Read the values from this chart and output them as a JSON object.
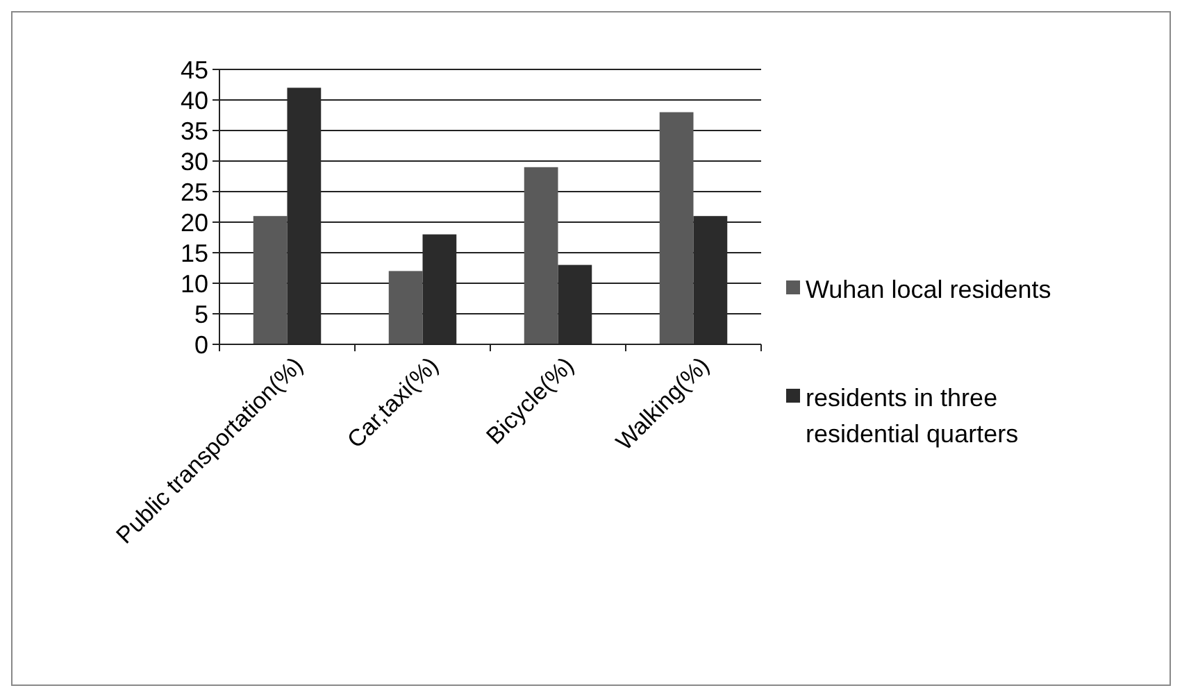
{
  "chart_data": {
    "type": "bar",
    "categories": [
      "Public transportation(%)",
      "Car,taxi(%)",
      "Bicycle(%)",
      "Walking(%)"
    ],
    "series": [
      {
        "name": "Wuhan local residents",
        "color": "#5a5a5a",
        "values": [
          21,
          12,
          29,
          38
        ]
      },
      {
        "name": "residents in three residential quarters",
        "color": "#2b2b2b",
        "values": [
          42,
          18,
          13,
          21
        ]
      }
    ],
    "ylim": [
      0,
      45
    ],
    "yticks": [
      0,
      5,
      10,
      15,
      20,
      25,
      30,
      35,
      40,
      45
    ],
    "grid": "y",
    "legend": "right"
  }
}
